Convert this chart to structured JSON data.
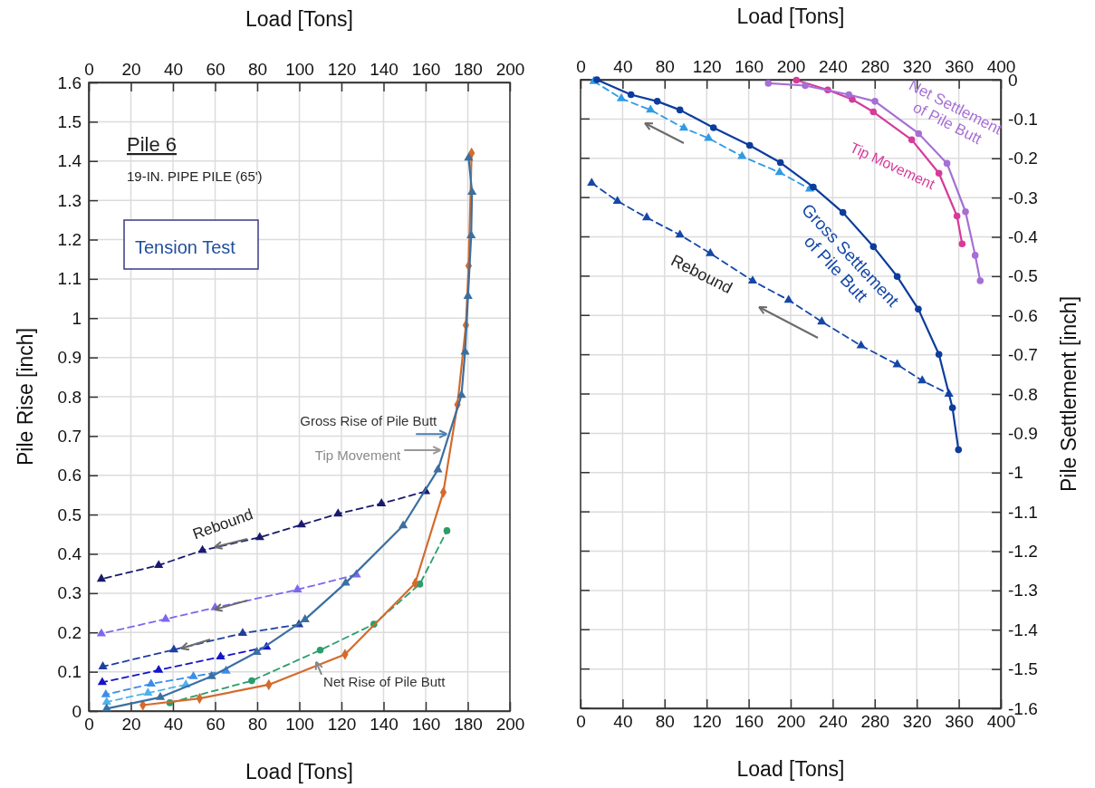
{
  "chart_data": [
    {
      "type": "line",
      "xlabel": "Load [Tons]",
      "x2label": "Load [Tons]",
      "ylabel": "Pile Rise [inch]",
      "xlim": [
        0,
        200
      ],
      "xticks": [
        0,
        20,
        40,
        60,
        80,
        100,
        120,
        140,
        160,
        180,
        200
      ],
      "x2lim": [
        0,
        200
      ],
      "x2ticks": [
        0,
        20,
        40,
        60,
        80,
        100,
        120,
        140,
        160,
        180,
        200
      ],
      "ylim": [
        0,
        1.6
      ],
      "yticks": [
        0,
        0.1,
        0.2,
        0.3,
        0.4,
        0.5,
        0.6,
        0.7,
        0.8,
        0.9,
        1,
        1.1,
        1.2,
        1.3,
        1.4,
        1.5,
        1.6
      ],
      "grid": true,
      "annotations": [
        "Pile 6",
        "19-IN. PIPE PILE (65')",
        "Tension Test",
        {
          "text": "Gross Rise of Pile Butt",
          "x": 170,
          "y": 0.712
        },
        {
          "text": "Tip Movement",
          "x": 167,
          "y": 0.664
        },
        {
          "text": "Net Rise of Pile Butt",
          "x": 108,
          "y": 0.125
        },
        "Rebound"
      ],
      "series": [
        {
          "color": "#1a1a6e",
          "marker": "triangle",
          "line_style": "dashed",
          "x": [
            160,
            139,
            118.4,
            101,
            81.2,
            54,
            33.2,
            6
          ],
          "values": [
            0.559,
            0.528,
            0.502,
            0.474,
            0.442,
            0.409,
            0.371,
            0.336
          ]
        },
        {
          "color": "#7b68ee",
          "marker": "triangle",
          "line_style": "dashed",
          "x": [
            127.1,
            99.1,
            60,
            36.5,
            6
          ],
          "values": [
            0.347,
            0.309,
            0.263,
            0.234,
            0.197
          ]
        },
        {
          "color": "#1f3f9f",
          "marker": "triangle",
          "line_style": "dashed",
          "x": [
            99.8,
            73.1,
            40.4,
            6.7
          ],
          "values": [
            0.22,
            0.198,
            0.156,
            0.113
          ]
        },
        {
          "color": "#1414c8",
          "marker": "triangle",
          "line_style": "dashed",
          "x": [
            84.4,
            62.6,
            33.2,
            6.4
          ],
          "values": [
            0.163,
            0.138,
            0.104,
            0.073
          ]
        },
        {
          "color": "#3a8ee8",
          "marker": "triangle",
          "line_style": "dashed",
          "x": [
            65.2,
            49.7,
            29.6,
            8.1
          ],
          "values": [
            0.102,
            0.088,
            0.069,
            0.042
          ]
        },
        {
          "color": "#4db3f0",
          "marker": "triangle",
          "line_style": "dashed",
          "x": [
            46.1,
            28.1,
            8.5
          ],
          "values": [
            0.067,
            0.046,
            0.023
          ]
        },
        {
          "color": "#2a9d6a",
          "marker": "circle",
          "line_style": "dashed",
          "x": [
            38.5,
            77.4,
            109.9,
            135.4,
            157.2,
            170.1
          ],
          "values": [
            0.021,
            0.077,
            0.155,
            0.221,
            0.323,
            0.459
          ]
        },
        {
          "color": "#d46a2c",
          "marker": "diamond",
          "line_style": "solid",
          "x": [
            25.7,
            52.6,
            85.5,
            121.7,
            155,
            168.4,
            175.1,
            179.1,
            180.4,
            181.8
          ],
          "values": [
            0.015,
            0.032,
            0.067,
            0.144,
            0.325,
            0.557,
            0.78,
            0.982,
            1.133,
            1.42
          ]
        },
        {
          "color": "#3b6fa0",
          "marker": "triangle",
          "line_style": "solid",
          "x": [
            8.5,
            34,
            58.3,
            79.8,
            102.7,
            122,
            149.3,
            165.8,
            177,
            178.7,
            180.1,
            181.6,
            182,
            180.4
          ],
          "values": [
            0.006,
            0.035,
            0.088,
            0.15,
            0.233,
            0.326,
            0.472,
            0.614,
            0.804,
            0.914,
            1.056,
            1.21,
            1.321,
            1.408
          ]
        }
      ]
    },
    {
      "type": "line",
      "xlabel": "Load [Tons]",
      "x2label": "Load [Tons]",
      "y2label": "Pile Settlement [inch]",
      "xlim": [
        0,
        400
      ],
      "xticks": [
        0,
        40,
        80,
        120,
        160,
        200,
        240,
        280,
        320,
        360,
        400
      ],
      "x2lim": [
        0,
        400
      ],
      "x2ticks": [
        0,
        40,
        80,
        120,
        160,
        200,
        240,
        280,
        320,
        360,
        400
      ],
      "y2lim": [
        -1.6,
        0
      ],
      "y2ticks": [
        0,
        -0.1,
        -0.2,
        -0.3,
        -0.4,
        -0.5,
        -0.6,
        -0.7,
        -0.8,
        -0.9,
        -1,
        -1.1,
        -1.2,
        -1.3,
        -1.4,
        -1.5,
        -1.6
      ],
      "grid": true,
      "annotations": [
        "Net Settlement of Pile Butt",
        "Tip Movement",
        "Gross Settlement of Pile Butt",
        "Rebound"
      ],
      "series": [
        {
          "axis": "y2",
          "color": "#2f9ae6",
          "marker": "triangle",
          "line_style": "dashed",
          "x": [
            12.7,
            38.8,
            66.6,
            98.3,
            121.8,
            153.7,
            189.4,
            218.1
          ],
          "values": [
            -0.004,
            -0.048,
            -0.077,
            -0.123,
            -0.149,
            -0.195,
            -0.236,
            -0.278
          ]
        },
        {
          "axis": "y2",
          "color": "#1547a8",
          "marker": "triangle",
          "line_style": "dashed",
          "x": [
            10.6,
            35.1,
            63,
            94.6,
            123.5,
            163.8,
            198,
            229.6,
            267,
            301.4,
            325.2,
            350.6
          ],
          "values": [
            -0.263,
            -0.309,
            -0.351,
            -0.395,
            -0.442,
            -0.512,
            -0.561,
            -0.616,
            -0.677,
            -0.725,
            -0.766,
            -0.8
          ]
        },
        {
          "axis": "y2",
          "color": "#0c3c9c",
          "marker": "circle",
          "line_style": "solid",
          "x": [
            15.5,
            48,
            73,
            94.6,
            126.5,
            161,
            190.2,
            221.5,
            249.7,
            278.7,
            301.4,
            321.5,
            341.1,
            354,
            359.7
          ],
          "values": [
            0,
            -0.038,
            -0.055,
            -0.077,
            -0.122,
            -0.167,
            -0.211,
            -0.273,
            -0.338,
            -0.425,
            -0.501,
            -0.584,
            -0.699,
            -0.835,
            -0.942
          ]
        },
        {
          "axis": "y2",
          "color": "#d63b9b",
          "marker": "circle",
          "line_style": "solid",
          "x": [
            205.4,
            235.3,
            258.6,
            278.7,
            315.2,
            341.1,
            358.3,
            363.2
          ],
          "values": [
            -0.001,
            -0.026,
            -0.05,
            -0.082,
            -0.153,
            -0.238,
            -0.347,
            -0.418
          ]
        },
        {
          "axis": "y2",
          "color": "#a66fd4",
          "marker": "circle",
          "line_style": "solid",
          "x": [
            178.7,
            213.8,
            255.4,
            280.2,
            321.8,
            348.8,
            366.4,
            375.6,
            380.4
          ],
          "values": [
            -0.009,
            -0.015,
            -0.038,
            -0.055,
            -0.137,
            -0.213,
            -0.336,
            -0.447,
            -0.512
          ]
        }
      ]
    }
  ]
}
